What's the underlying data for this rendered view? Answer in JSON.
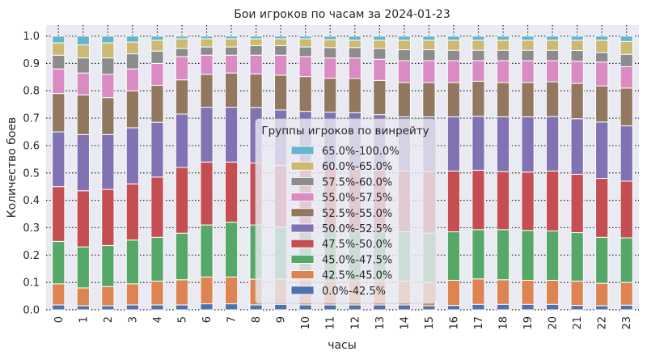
{
  "chart_data": {
    "type": "bar",
    "stacked": true,
    "title": "Бои игроков по часам за 2024-01-23",
    "xlabel": "часы",
    "ylabel": "Количество боев",
    "ylim": [
      0,
      1.04
    ],
    "yticks": [
      "0.0",
      "0.1",
      "0.2",
      "0.3",
      "0.4",
      "0.5",
      "0.6",
      "0.7",
      "0.8",
      "0.9",
      "1.0"
    ],
    "grid": true,
    "legend_title": "Группы игроков по винрейту",
    "legend_position": "center",
    "categories": [
      "0",
      "1",
      "2",
      "3",
      "4",
      "5",
      "6",
      "7",
      "8",
      "9",
      "10",
      "11",
      "12",
      "13",
      "14",
      "15",
      "16",
      "17",
      "18",
      "19",
      "20",
      "21",
      "22",
      "23"
    ],
    "series": [
      {
        "name": "0.0%-42.5%",
        "color": "#4c72b0",
        "values": [
          0.018,
          0.015,
          0.015,
          0.018,
          0.018,
          0.018,
          0.022,
          0.022,
          0.018,
          0.02,
          0.018,
          0.018,
          0.018,
          0.018,
          0.018,
          0.015,
          0.016,
          0.02,
          0.02,
          0.02,
          0.02,
          0.016,
          0.015,
          0.017
        ]
      },
      {
        "name": "42.5%-45.0%",
        "color": "#dd8452",
        "values": [
          0.077,
          0.065,
          0.07,
          0.077,
          0.087,
          0.092,
          0.098,
          0.098,
          0.094,
          0.092,
          0.092,
          0.087,
          0.087,
          0.087,
          0.087,
          0.085,
          0.092,
          0.093,
          0.09,
          0.088,
          0.088,
          0.089,
          0.082,
          0.083
        ]
      },
      {
        "name": "45.0%-47.5%",
        "color": "#55a868",
        "values": [
          0.155,
          0.15,
          0.15,
          0.16,
          0.16,
          0.17,
          0.19,
          0.2,
          0.198,
          0.19,
          0.185,
          0.185,
          0.185,
          0.18,
          0.18,
          0.18,
          0.177,
          0.18,
          0.183,
          0.182,
          0.18,
          0.177,
          0.168,
          0.163
        ]
      },
      {
        "name": "47.5%-50.0%",
        "color": "#c44e52",
        "values": [
          0.2,
          0.205,
          0.205,
          0.205,
          0.22,
          0.24,
          0.23,
          0.22,
          0.226,
          0.226,
          0.225,
          0.23,
          0.225,
          0.225,
          0.222,
          0.225,
          0.222,
          0.217,
          0.212,
          0.213,
          0.219,
          0.213,
          0.215,
          0.207
        ]
      },
      {
        "name": "50.0%-52.5%",
        "color": "#8172b3",
        "values": [
          0.2,
          0.205,
          0.2,
          0.205,
          0.2,
          0.195,
          0.2,
          0.2,
          0.203,
          0.202,
          0.205,
          0.202,
          0.205,
          0.203,
          0.198,
          0.2,
          0.198,
          0.197,
          0.2,
          0.202,
          0.199,
          0.203,
          0.206,
          0.202
        ]
      },
      {
        "name": "52.5%-55.0%",
        "color": "#937860",
        "values": [
          0.14,
          0.145,
          0.135,
          0.135,
          0.135,
          0.125,
          0.12,
          0.125,
          0.123,
          0.127,
          0.127,
          0.124,
          0.125,
          0.125,
          0.125,
          0.125,
          0.125,
          0.128,
          0.125,
          0.125,
          0.127,
          0.129,
          0.132,
          0.138
        ]
      },
      {
        "name": "55.0%-57.5%",
        "color": "#da8bc3",
        "values": [
          0.09,
          0.08,
          0.085,
          0.08,
          0.08,
          0.085,
          0.07,
          0.065,
          0.068,
          0.073,
          0.073,
          0.074,
          0.075,
          0.077,
          0.08,
          0.08,
          0.08,
          0.075,
          0.08,
          0.08,
          0.077,
          0.081,
          0.087,
          0.078
        ]
      },
      {
        "name": "57.5%-60.0%",
        "color": "#8c8c8c",
        "values": [
          0.05,
          0.055,
          0.06,
          0.055,
          0.045,
          0.03,
          0.03,
          0.03,
          0.035,
          0.035,
          0.035,
          0.038,
          0.038,
          0.04,
          0.04,
          0.04,
          0.038,
          0.038,
          0.038,
          0.038,
          0.038,
          0.039,
          0.035,
          0.045
        ]
      },
      {
        "name": "60.0%-65.0%",
        "color": "#ccb974",
        "values": [
          0.045,
          0.048,
          0.055,
          0.043,
          0.04,
          0.035,
          0.03,
          0.03,
          0.025,
          0.025,
          0.03,
          0.029,
          0.027,
          0.03,
          0.035,
          0.035,
          0.037,
          0.037,
          0.037,
          0.037,
          0.037,
          0.038,
          0.045,
          0.047
        ]
      },
      {
        "name": "65.0%-100.0%",
        "color": "#64b5cd",
        "values": [
          0.025,
          0.032,
          0.025,
          0.022,
          0.015,
          0.01,
          0.01,
          0.01,
          0.01,
          0.01,
          0.01,
          0.013,
          0.015,
          0.015,
          0.015,
          0.015,
          0.015,
          0.015,
          0.015,
          0.015,
          0.015,
          0.015,
          0.015,
          0.02
        ]
      }
    ]
  }
}
